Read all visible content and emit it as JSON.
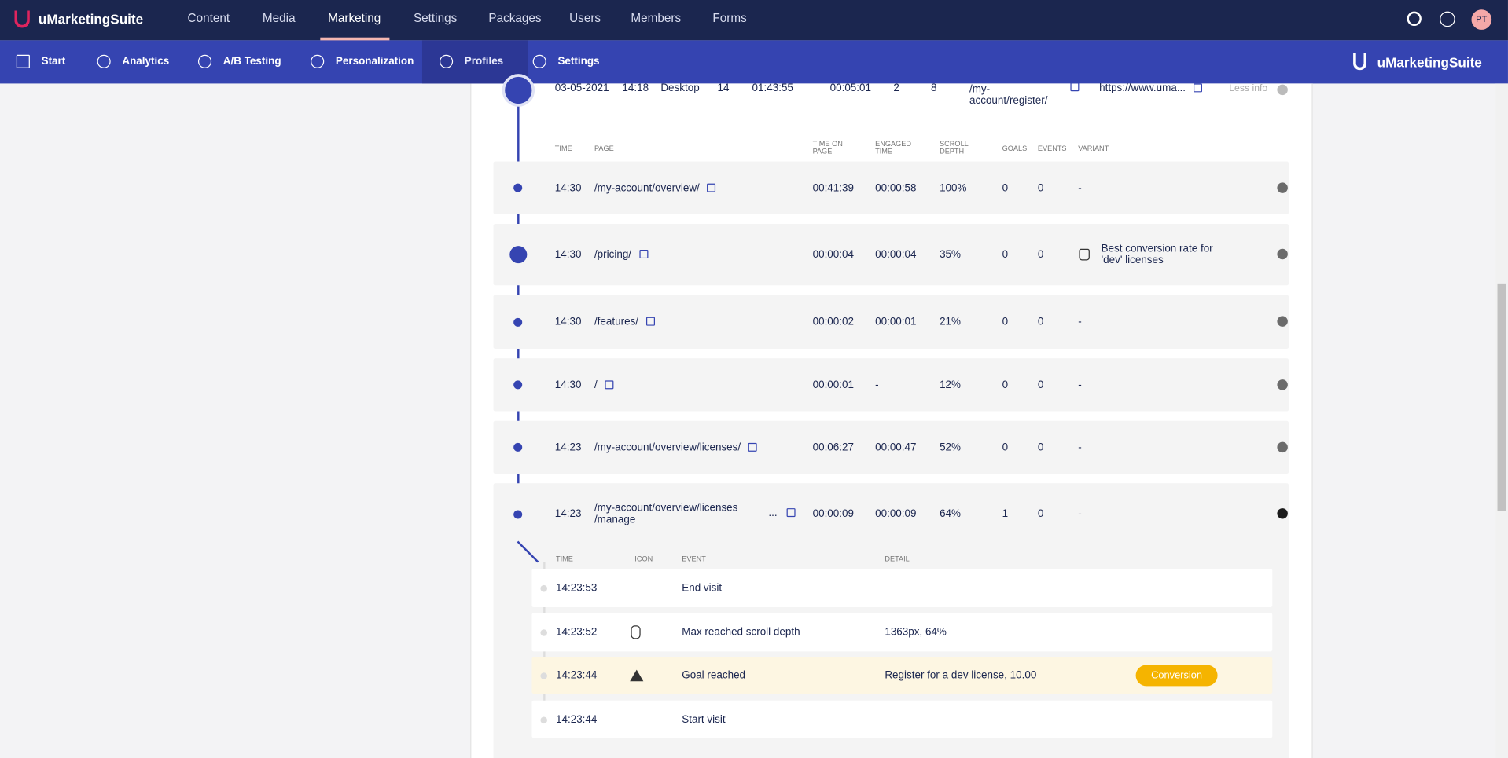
{
  "top_nav": {
    "brand": "uMarketingSuite",
    "items": [
      "Content",
      "Media",
      "Marketing",
      "Settings",
      "Packages",
      "Users",
      "Members",
      "Forms"
    ],
    "active": 2,
    "avatar": "PT"
  },
  "sub_nav": {
    "items": [
      "Start",
      "Analytics",
      "A/B Testing",
      "Personalization",
      "Profiles",
      "Settings"
    ],
    "active": 4,
    "brand": "uMarketingSuite"
  },
  "session": {
    "date": "03-05-2021",
    "time": "14:18",
    "device": "Desktop",
    "pageviews": 14,
    "duration": "01:43:55",
    "engaged": "00:05:01",
    "goals": 2,
    "events": 8,
    "page": "/my-account/register/",
    "url": "https://www.uma...",
    "toggle": "Less info"
  },
  "pageview_headers": [
    "TIME",
    "PAGE",
    "TIME ON PAGE",
    "ENGAGED TIME",
    "SCROLL DEPTH",
    "GOALS",
    "EVENTS",
    "VARIANT"
  ],
  "pageviews": [
    {
      "time": "14:30",
      "page": "/my-account/overview/",
      "time_on_page": "00:41:39",
      "engaged": "00:00:58",
      "scroll": "100%",
      "goals": 0,
      "events": 0,
      "variant": "-"
    },
    {
      "time": "14:30",
      "page": "/pricing/",
      "time_on_page": "00:00:04",
      "engaged": "00:00:04",
      "scroll": "35%",
      "goals": 0,
      "events": 0,
      "variant": "Best conversion rate for 'dev' licenses"
    },
    {
      "time": "14:30",
      "page": "/features/",
      "time_on_page": "00:00:02",
      "engaged": "00:00:01",
      "scroll": "21%",
      "goals": 0,
      "events": 0,
      "variant": "-"
    },
    {
      "time": "14:30",
      "page": "/",
      "time_on_page": "00:00:01",
      "engaged": "-",
      "scroll": "12%",
      "goals": 0,
      "events": 0,
      "variant": "-"
    },
    {
      "time": "14:23",
      "page": "/my-account/overview/licenses/",
      "time_on_page": "00:06:27",
      "engaged": "00:00:47",
      "scroll": "52%",
      "goals": 0,
      "events": 0,
      "variant": "-"
    },
    {
      "time": "14:23",
      "page": "/my-account/overview/licenses /manage",
      "more": "...",
      "time_on_page": "00:00:09",
      "engaged": "00:00:09",
      "scroll": "64%",
      "goals": 1,
      "events": 0,
      "variant": "-"
    }
  ],
  "event_headers": [
    "TIME",
    "ICON",
    "EVENT",
    "DETAIL"
  ],
  "events": [
    {
      "time": "14:23:53",
      "event": "End visit"
    },
    {
      "time": "14:23:52",
      "event": "Max reached scroll depth",
      "detail": "1363px, 64%"
    },
    {
      "time": "14:23:44",
      "event": "Goal reached",
      "detail": "Register for a dev license, 10.00",
      "badge": "Conversion"
    },
    {
      "time": "14:23:44",
      "event": "Start visit"
    }
  ]
}
